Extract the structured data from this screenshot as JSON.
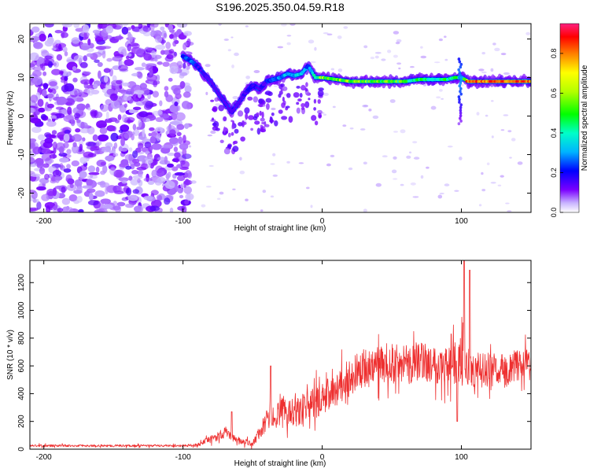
{
  "figure_title": "S196.2025.350.04.59.R18",
  "chart_data": [
    {
      "type": "heatmap",
      "name": "spectrogram",
      "xlabel": "Height of straight line (km)",
      "ylabel": "Frequency (Hz)",
      "xlim": [
        -210,
        150
      ],
      "ylim": [
        -25,
        24
      ],
      "xticks": [
        -200,
        -100,
        0,
        100
      ],
      "xtick_labels": [
        "-200",
        "-100",
        "0",
        "100"
      ],
      "yticks": [
        -20,
        -10,
        0,
        10,
        20
      ],
      "ytick_labels": [
        "-20",
        "-10",
        "0",
        "10",
        "20"
      ],
      "ridge": {
        "x": [
          -100,
          -95,
          -90,
          -85,
          -80,
          -75,
          -70,
          -65,
          -60,
          -55,
          -50,
          -45,
          -40,
          -35,
          -30,
          -25,
          -20,
          -15,
          -10,
          -5,
          0,
          10,
          20,
          30,
          40,
          50,
          60,
          70,
          80,
          90,
          95,
          100,
          105,
          110,
          120,
          130,
          140,
          150
        ],
        "freq": [
          15.5,
          14.5,
          13,
          11,
          9,
          6,
          3.5,
          1,
          3.5,
          6,
          8,
          7,
          9,
          9.5,
          10,
          11,
          10.5,
          11,
          13,
          10,
          10,
          9.5,
          9,
          9,
          9,
          9,
          9,
          9.5,
          9.5,
          9.5,
          10,
          10,
          9,
          9,
          9,
          9,
          9,
          9
        ],
        "amplitude": [
          0.25,
          0.3,
          0.2,
          0.15,
          0.1,
          0.12,
          0.1,
          0.05,
          0.12,
          0.18,
          0.2,
          0.15,
          0.2,
          0.25,
          0.3,
          0.35,
          0.35,
          0.35,
          0.3,
          0.45,
          0.6,
          0.55,
          0.65,
          0.6,
          0.55,
          0.55,
          0.5,
          0.5,
          0.45,
          0.5,
          0.55,
          0.3,
          0.85,
          0.85,
          0.8,
          0.75,
          0.7,
          0.6
        ]
      },
      "noise_region_x": [
        -210,
        -95
      ],
      "spike_x": [
        98,
        100
      ],
      "colorbar": {
        "label": "Normalized spectral amplitude",
        "range": [
          0.0,
          0.95
        ],
        "ticks": [
          0.0,
          0.2,
          0.4,
          0.6,
          0.8
        ],
        "tick_labels": [
          "0.0",
          "0.2",
          "0.4",
          "0.6",
          "0.8"
        ]
      }
    },
    {
      "type": "line",
      "name": "snr",
      "color": "#ee3030",
      "xlabel": "Height of straight line (km)",
      "ylabel": "SNR (10 * v/v)",
      "xlim": [
        -210,
        150
      ],
      "ylim": [
        0,
        1360
      ],
      "xticks": [
        -200,
        -100,
        0,
        100
      ],
      "xtick_labels": [
        "-200",
        "-100",
        "0",
        "100"
      ],
      "yticks": [
        0,
        200,
        400,
        600,
        800,
        1000,
        1200
      ],
      "ytick_labels": [
        "0",
        "200",
        "400",
        "600",
        "800",
        "1000",
        "1200"
      ],
      "envelope": {
        "x": [
          -210,
          -100,
          -90,
          -80,
          -70,
          -60,
          -50,
          -40,
          -30,
          -20,
          -10,
          0,
          10,
          20,
          30,
          40,
          50,
          60,
          70,
          80,
          90,
          100,
          110,
          120,
          130,
          140,
          150
        ],
        "mean": [
          25,
          25,
          30,
          70,
          120,
          60,
          40,
          200,
          260,
          280,
          310,
          360,
          430,
          520,
          580,
          600,
          620,
          600,
          640,
          620,
          600,
          620,
          560,
          580,
          560,
          600,
          620
        ],
        "spread": [
          15,
          15,
          20,
          50,
          70,
          40,
          40,
          140,
          170,
          200,
          200,
          220,
          220,
          250,
          260,
          250,
          260,
          260,
          260,
          260,
          270,
          330,
          240,
          220,
          220,
          200,
          200
        ]
      },
      "peaks": [
        {
          "x": 102,
          "y": 1360
        },
        {
          "x": 106,
          "y": 1290
        },
        {
          "x": 97,
          "y": 200
        },
        {
          "x": -37,
          "y": 600
        },
        {
          "x": -65,
          "y": 270
        }
      ]
    }
  ]
}
